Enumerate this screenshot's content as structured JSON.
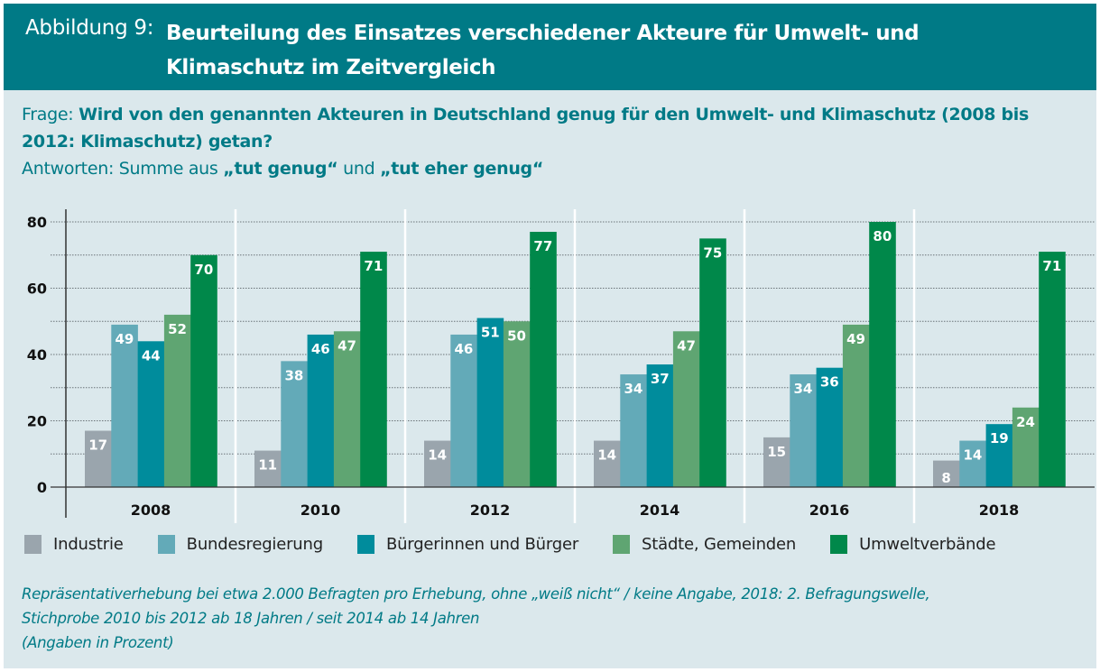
{
  "header": {
    "prefix": "Abbildung 9:",
    "title": "Beurteilung des Einsatzes verschiedener Akteure für Umwelt- und Klimaschutz im Zeitvergleich"
  },
  "question": {
    "label": "Frage: ",
    "text": "Wird von den genannten Akteuren in Deutschland genug für den Umwelt- und Klimaschutz (2008 bis 2012: Klimaschutz) getan?",
    "answer_label": "Antworten: Summe aus ",
    "answer_a": "„tut genug“",
    "answer_mid": " und ",
    "answer_b": "„tut eher genug“"
  },
  "chart_data": {
    "type": "bar",
    "title": "Beurteilung des Einsatzes verschiedener Akteure für Umwelt- und Klimaschutz im Zeitvergleich",
    "xlabel": "",
    "ylabel": "",
    "unit": "Prozent",
    "ylim": [
      0,
      80
    ],
    "yticks": [
      0,
      20,
      40,
      60,
      80
    ],
    "grid": true,
    "legend_position": "bottom",
    "categories": [
      "2008",
      "2010",
      "2012",
      "2014",
      "2016",
      "2018"
    ],
    "series": [
      {
        "name": "Industrie",
        "color": "#9aa5ad",
        "values": [
          17,
          11,
          14,
          14,
          15,
          8
        ]
      },
      {
        "name": "Bundesregierung",
        "color": "#63aab8",
        "values": [
          49,
          38,
          46,
          34,
          34,
          14
        ]
      },
      {
        "name": "Bürgerinnen und Bürger",
        "color": "#008c9c",
        "values": [
          44,
          46,
          51,
          37,
          36,
          19
        ]
      },
      {
        "name": "Städte, Gemeinden",
        "color": "#5fa572",
        "values": [
          52,
          47,
          50,
          47,
          49,
          24
        ]
      },
      {
        "name": "Umweltverbände",
        "color": "#00884a",
        "values": [
          70,
          71,
          77,
          75,
          80,
          71
        ]
      }
    ]
  },
  "footnote": {
    "line1": "Repräsentativerhebung bei etwa 2.000 Befragten pro Erhebung, ohne „weiß nicht“ / keine Angabe, 2018: 2. Befragungswelle,",
    "line2": "Stichprobe 2010 bis 2012 ab 18 Jahren / seit 2014 ab 14 Jahren",
    "line3": "(Angaben in Prozent)"
  }
}
